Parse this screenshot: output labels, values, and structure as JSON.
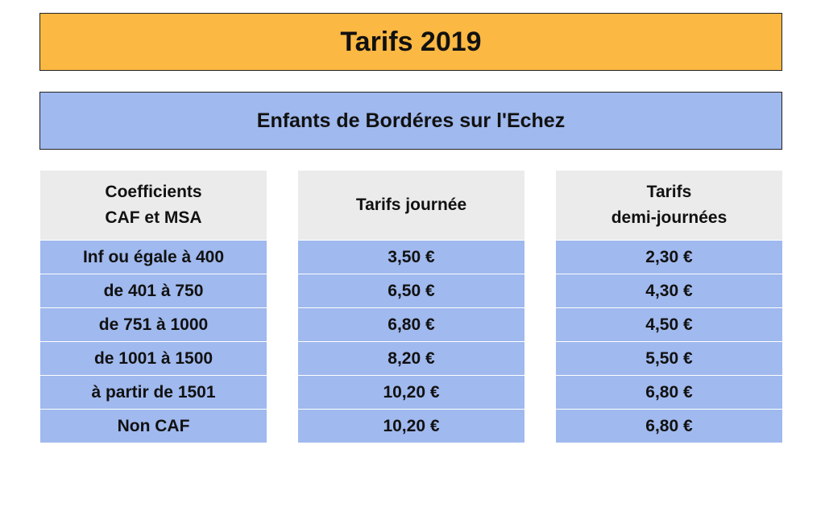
{
  "header": {
    "title": "Tarifs 2019"
  },
  "subheader": {
    "title": "Enfants de Bordéres sur l'Echez"
  },
  "columns": [
    {
      "heading": [
        "Coefficients",
        "CAF et MSA"
      ]
    },
    {
      "heading": [
        "Tarifs journée"
      ]
    },
    {
      "heading": [
        "Tarifs",
        "demi-journées"
      ]
    }
  ],
  "rows": [
    [
      "Inf ou égale à 400",
      "3,50 €",
      "2,30 €"
    ],
    [
      "de 401 à 750",
      "6,50 €",
      "4,30 €"
    ],
    [
      "de 751 à 1000",
      "6,80 €",
      "4,50 €"
    ],
    [
      "de 1001 à 1500",
      "8,20 €",
      "5,50 €"
    ],
    [
      "à partir de 1501",
      "10,20 €",
      "6,80 €"
    ],
    [
      "Non CAF",
      "10,20 €",
      "6,80 €"
    ]
  ],
  "colors": {
    "title_bg": "#fbb843",
    "table_bg": "#a0b9ee",
    "header_bg": "#ebebeb"
  }
}
